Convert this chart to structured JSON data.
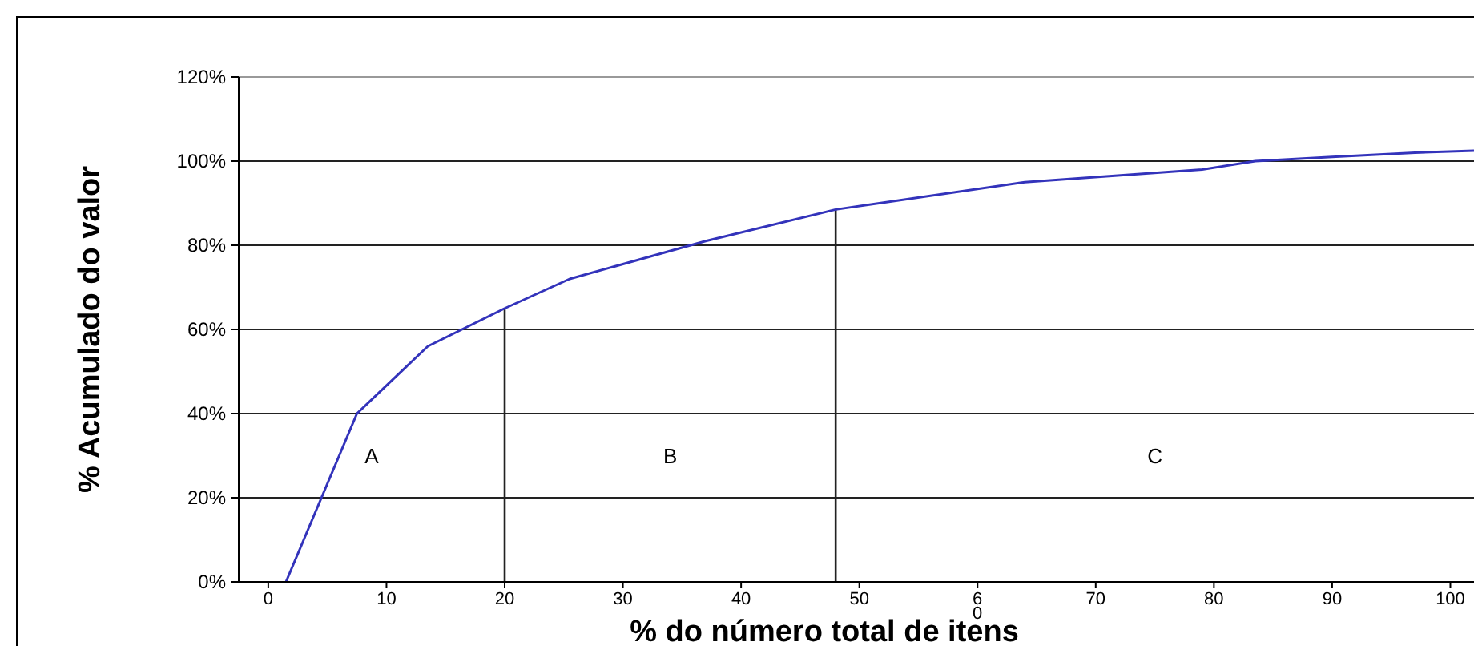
{
  "chart_data": {
    "type": "line",
    "xlabel": "% do número total de itens",
    "ylabel": "% Acumulado do valor",
    "x": [
      1.5,
      7.5,
      13.5,
      20,
      25.5,
      37,
      48,
      64,
      79,
      83.5,
      90,
      97,
      102
    ],
    "series": [
      {
        "color": "#3333bb",
        "values": [
          0,
          40,
          56,
          65,
          72,
          81,
          88.5,
          95,
          98,
          100,
          101,
          102,
          102.5
        ]
      }
    ],
    "xlim": [
      -2.5,
      102
    ],
    "ylim": [
      0,
      120
    ],
    "xticks": [
      0,
      10,
      20,
      30,
      40,
      50,
      {
        "value": 60,
        "label": "6\n0"
      },
      70,
      80,
      90,
      100
    ],
    "yticks": [
      {
        "value": 0,
        "label": "0%"
      },
      {
        "value": 20,
        "label": "20%"
      },
      {
        "value": 40,
        "label": "40%"
      },
      {
        "value": 60,
        "label": "60%"
      },
      {
        "value": 80,
        "label": "80%"
      },
      {
        "value": 100,
        "label": "100%"
      },
      {
        "value": 120,
        "label": "120%"
      }
    ],
    "grid": "y",
    "marker": "none",
    "line_style": "solid",
    "ref_lines": [
      {
        "axis": "x",
        "value": 20,
        "color": "#222222"
      },
      {
        "axis": "x",
        "value": 48,
        "color": "#222222"
      }
    ],
    "annotations": [
      "A",
      "B",
      "C"
    ]
  }
}
